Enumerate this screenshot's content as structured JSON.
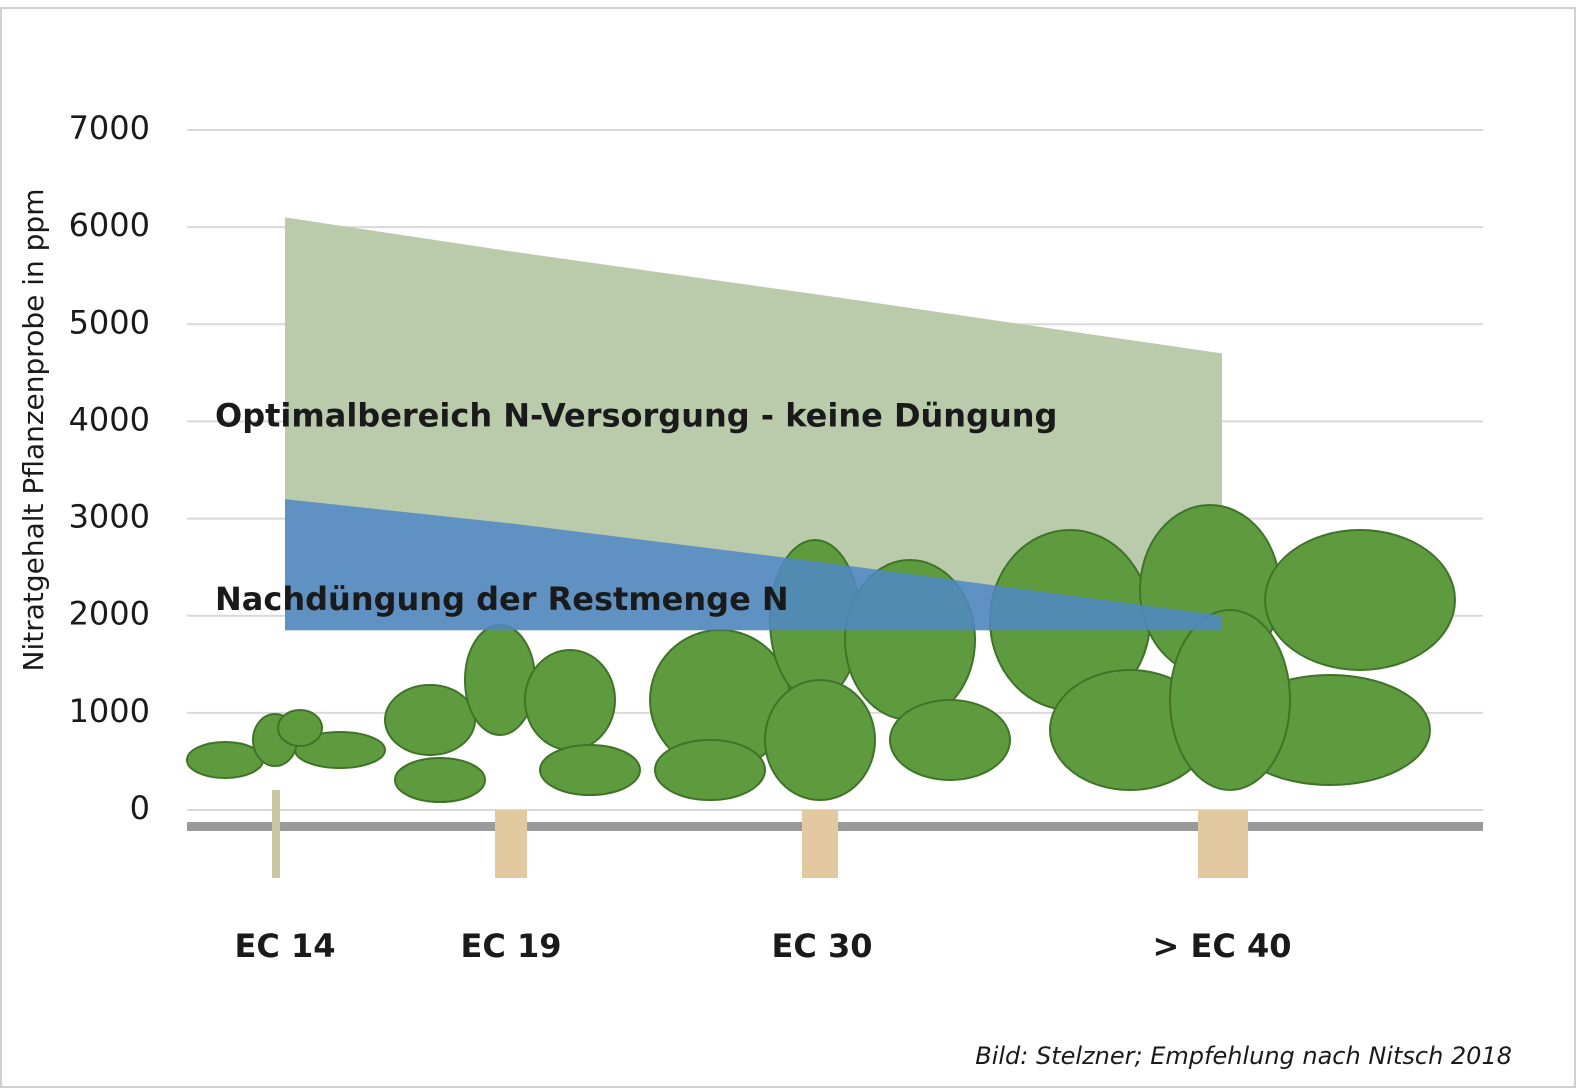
{
  "chart_data": {
    "type": "band",
    "y_axis_label": "Nitratgehalt Pflanzenprobe in ppm",
    "categories": [
      "EC 14",
      "EC 19",
      "EC 30",
      "> EC 40"
    ],
    "ylim": [
      0,
      7000
    ],
    "yticks": [
      0,
      1000,
      2000,
      3000,
      4000,
      5000,
      6000,
      7000
    ],
    "grid": true,
    "band_floor": 1850,
    "series": [
      {
        "color": "#b9cbab",
        "values": [
          6100,
          5750,
          5300,
          4700
        ]
      },
      {
        "color": "#4f88c6",
        "values": [
          3200,
          2950,
          2550,
          2000
        ]
      }
    ],
    "annotations": [
      {
        "text": "Optimalbereich N-Versorgung - keine Düngung",
        "color": "#111111"
      },
      {
        "text": "Nachdüngung  der Restmenge N",
        "color": "#ffffff"
      }
    ],
    "source": "Bild: Stelzner; Empfehlung nach Nitsch 2018"
  }
}
